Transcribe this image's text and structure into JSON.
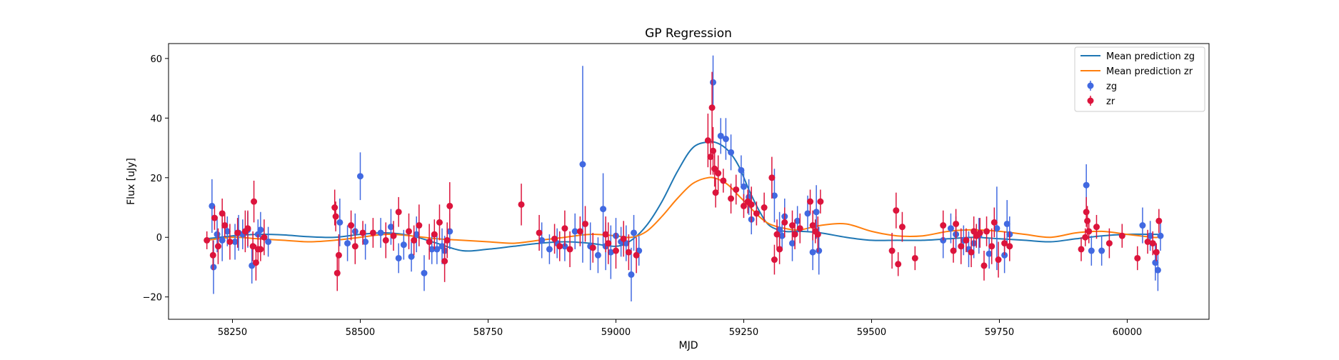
{
  "chart_data": {
    "type": "scatter",
    "title": "GP Regression",
    "xlabel": "MJD",
    "ylabel": "Flux [uJy]",
    "xlim": [
      58125,
      60160
    ],
    "ylim": [
      -27.5,
      65
    ],
    "xticks": [
      58250,
      58500,
      58750,
      59000,
      59250,
      59500,
      59750,
      60000
    ],
    "yticks": [
      -20,
      0,
      20,
      40,
      60
    ],
    "grid": false,
    "legend_position": "top-right",
    "legend": {
      "mean_zg": "Mean prediction zg",
      "mean_zr": "Mean prediction zr",
      "zg": "zg",
      "zr": "zr"
    },
    "colors": {
      "mean_zg": "#1f77b4",
      "mean_zr": "#ff7f0e",
      "zg": "#4169e1",
      "zr": "#dc143c"
    },
    "mean_zg": {
      "x": [
        58200,
        58250,
        58300,
        58350,
        58400,
        58450,
        58500,
        58550,
        58600,
        58650,
        58700,
        58750,
        58800,
        58850,
        58900,
        58950,
        59000,
        59030,
        59060,
        59090,
        59120,
        59150,
        59180,
        59200,
        59220,
        59240,
        59260,
        59280,
        59300,
        59330,
        59360,
        59400,
        59450,
        59500,
        59550,
        59600,
        59650,
        59700,
        59750,
        59800,
        59850,
        59900,
        59950,
        60000,
        60050,
        60060
      ],
      "y": [
        -0.5,
        0.5,
        1.0,
        0.8,
        0.2,
        0.0,
        1.0,
        1.5,
        0.5,
        -2.0,
        -4.5,
        -4.0,
        -3.0,
        -2.0,
        -1.5,
        -2.0,
        -3.0,
        -1.0,
        4.0,
        12.0,
        22.0,
        30.0,
        32.0,
        31.5,
        29.0,
        24.0,
        16.0,
        9.0,
        4.0,
        2.0,
        2.0,
        1.5,
        0.0,
        -1.0,
        -1.0,
        -1.0,
        -0.5,
        0.0,
        -0.5,
        -1.0,
        -1.5,
        -0.5,
        0.5,
        1.0,
        1.0,
        1.0
      ]
    },
    "mean_zr": {
      "x": [
        58200,
        58250,
        58300,
        58350,
        58400,
        58450,
        58500,
        58550,
        58600,
        58650,
        58700,
        58750,
        58800,
        58850,
        58900,
        58950,
        59000,
        59030,
        59060,
        59090,
        59120,
        59150,
        59180,
        59200,
        59220,
        59240,
        59260,
        59280,
        59300,
        59330,
        59360,
        59400,
        59450,
        59500,
        59550,
        59600,
        59650,
        59700,
        59750,
        59800,
        59850,
        59900,
        59950,
        60000,
        60050,
        60060
      ],
      "y": [
        -1.0,
        0.0,
        -0.5,
        -1.0,
        -1.5,
        -1.0,
        0.0,
        1.0,
        0.5,
        -0.5,
        -1.0,
        -1.5,
        -2.0,
        -1.0,
        0.0,
        1.0,
        0.5,
        0.0,
        2.0,
        7.0,
        13.0,
        18.0,
        20.0,
        19.5,
        17.5,
        14.0,
        10.5,
        7.0,
        4.5,
        3.0,
        2.5,
        4.0,
        4.5,
        2.0,
        0.5,
        0.5,
        2.0,
        2.5,
        2.0,
        1.0,
        0.0,
        1.5,
        2.0,
        1.0,
        0.0,
        0.0
      ]
    },
    "zg": {
      "x": [
        58210,
        58213,
        58220,
        58230,
        58240,
        58255,
        58262,
        58270,
        58280,
        58288,
        58300,
        58305,
        58320,
        58460,
        58475,
        58490,
        58500,
        58510,
        58540,
        58560,
        58575,
        58585,
        58600,
        58610,
        58625,
        58640,
        58650,
        58660,
        58665,
        58675,
        58855,
        58870,
        58885,
        58900,
        58920,
        58935,
        58950,
        58965,
        58975,
        58980,
        58990,
        59000,
        59010,
        59020,
        59030,
        59035,
        59045,
        59190,
        59205,
        59215,
        59225,
        59245,
        59250,
        59260,
        59265,
        59310,
        59320,
        59325,
        59330,
        59345,
        59355,
        59375,
        59385,
        59392,
        59397,
        59640,
        59655,
        59665,
        59680,
        59690,
        59700,
        59710,
        59730,
        59745,
        59760,
        59765,
        59770,
        59920,
        59930,
        59950,
        60030,
        60045,
        60055,
        60060,
        60065
      ],
      "y": [
        10.5,
        -10.0,
        1.0,
        -1.0,
        2.0,
        -1.5,
        1.5,
        1.0,
        2.5,
        -9.5,
        1.0,
        2.5,
        -1.5,
        5.0,
        -2.0,
        2.0,
        20.5,
        -1.5,
        1.5,
        3.5,
        -7.0,
        -2.5,
        -6.5,
        1.0,
        -12.0,
        -4.0,
        -4.0,
        -3.0,
        -4.5,
        2.0,
        -1.0,
        -4.0,
        -2.0,
        -3.0,
        2.0,
        24.5,
        -3.0,
        -6.0,
        9.5,
        -3.0,
        -5.0,
        0.5,
        -1.5,
        -2.0,
        -12.5,
        1.5,
        -4.5,
        52.0,
        34.0,
        33.0,
        28.5,
        22.5,
        17.0,
        13.5,
        6.0,
        14.0,
        2.5,
        0.5,
        7.0,
        -2.0,
        5.5,
        8.0,
        -5.0,
        8.5,
        -4.5,
        -1.0,
        3.0,
        1.0,
        -1.0,
        -4.0,
        -2.0,
        0.5,
        -5.5,
        3.0,
        -6.0,
        4.5,
        1.0,
        17.5,
        -4.5,
        -4.5,
        4.0,
        0.5,
        -8.5,
        -11.0,
        0.5
      ],
      "err": [
        9,
        9,
        6,
        7,
        5,
        6,
        6,
        5,
        6,
        6,
        5,
        6,
        5,
        8,
        6,
        6,
        8,
        6,
        5,
        6,
        5,
        5,
        5,
        6,
        6,
        5,
        5,
        6,
        5,
        6,
        6,
        5,
        5,
        5,
        6,
        33,
        8,
        6,
        12,
        8,
        9,
        6,
        5,
        6,
        9,
        6,
        5,
        9,
        6,
        7,
        6,
        5,
        5,
        6,
        5,
        9,
        6,
        5,
        6,
        6,
        5,
        6,
        6,
        9,
        8,
        6,
        5,
        6,
        5,
        6,
        5,
        6,
        5,
        14,
        6,
        8,
        6,
        7,
        5,
        5,
        6,
        5,
        6,
        7,
        5
      ]
    },
    "zr": {
      "x": [
        58200,
        58212,
        58215,
        58222,
        58230,
        58235,
        58245,
        58260,
        58275,
        58280,
        58290,
        58292,
        58296,
        58300,
        58305,
        58312,
        58450,
        58452,
        58455,
        58458,
        58482,
        58490,
        58505,
        58525,
        58550,
        58565,
        58575,
        58595,
        58605,
        58615,
        58635,
        58645,
        58655,
        58665,
        58670,
        58675,
        58815,
        58850,
        58880,
        58890,
        58900,
        58910,
        58930,
        58940,
        58955,
        58980,
        58985,
        59000,
        59015,
        59025,
        59040,
        59180,
        59185,
        59188,
        59190,
        59193,
        59195,
        59200,
        59210,
        59225,
        59235,
        59250,
        59258,
        59265,
        59275,
        59290,
        59305,
        59310,
        59315,
        59320,
        59330,
        59345,
        59350,
        59360,
        59380,
        59385,
        59390,
        59395,
        59400,
        59540,
        59548,
        59552,
        59560,
        59585,
        59640,
        59660,
        59665,
        59675,
        59685,
        59695,
        59700,
        59705,
        59712,
        59720,
        59725,
        59735,
        59740,
        59748,
        59760,
        59770,
        59910,
        59918,
        59920,
        59922,
        59925,
        59940,
        59965,
        59990,
        60020,
        60040,
        60050,
        60057,
        60062
      ],
      "y": [
        -1.0,
        -6.0,
        6.5,
        -3.0,
        8.0,
        4.0,
        -1.5,
        1.5,
        2.0,
        3.0,
        -3.0,
        12.0,
        -8.5,
        -4.0,
        -4.0,
        0.0,
        10.0,
        7.0,
        -12.0,
        -6.0,
        4.0,
        -3.0,
        1.5,
        1.5,
        -1.0,
        0.5,
        8.5,
        2.0,
        -1.0,
        4.0,
        -1.5,
        1.0,
        5.0,
        -8.0,
        -1.0,
        10.5,
        11.0,
        1.5,
        -0.5,
        -3.0,
        3.0,
        -4.0,
        2.0,
        4.5,
        -3.5,
        1.0,
        -2.0,
        -4.5,
        -0.5,
        -5.0,
        -6.0,
        32.5,
        27.0,
        43.5,
        29.0,
        23.0,
        15.0,
        21.5,
        19.0,
        13.0,
        16.0,
        10.5,
        12.0,
        11.0,
        8.0,
        10.0,
        20.0,
        -7.5,
        1.0,
        -4.0,
        5.0,
        4.0,
        1.0,
        3.0,
        12.0,
        4.0,
        2.0,
        1.0,
        12.0,
        -4.5,
        9.0,
        -9.0,
        3.5,
        -7.0,
        4.0,
        -4.5,
        4.5,
        -3.0,
        -1.0,
        -5.0,
        2.0,
        0.5,
        1.5,
        -9.5,
        2.0,
        -3.0,
        5.0,
        -7.5,
        -2.0,
        -3.0,
        -4.0,
        0.0,
        8.5,
        5.5,
        2.0,
        3.5,
        -2.0,
        0.5,
        -7.0,
        -1.5,
        -2.0,
        -5.0,
        5.5
      ],
      "err": [
        3,
        5,
        4,
        6,
        5,
        4,
        6,
        5,
        7,
        6,
        5,
        7,
        6,
        5,
        4,
        6,
        6,
        5,
        6,
        7,
        5,
        6,
        4,
        5,
        6,
        5,
        5,
        6,
        5,
        7,
        6,
        5,
        6,
        7,
        6,
        8,
        7,
        6,
        5,
        5,
        6,
        6,
        5,
        6,
        5,
        6,
        7,
        6,
        6,
        6,
        6,
        9,
        6,
        12,
        8,
        6,
        5,
        6,
        4,
        5,
        5,
        4,
        4,
        6,
        4,
        5,
        7,
        5,
        5,
        5,
        5,
        5,
        5,
        5,
        4,
        5,
        4,
        6,
        4,
        6,
        6,
        4,
        5,
        4,
        5,
        4,
        5,
        6,
        4,
        5,
        5,
        4,
        5,
        5,
        5,
        6,
        5,
        6,
        4,
        5,
        4,
        3,
        5,
        5,
        4,
        4,
        5,
        4,
        4,
        4,
        4,
        3,
        4
      ]
    }
  }
}
